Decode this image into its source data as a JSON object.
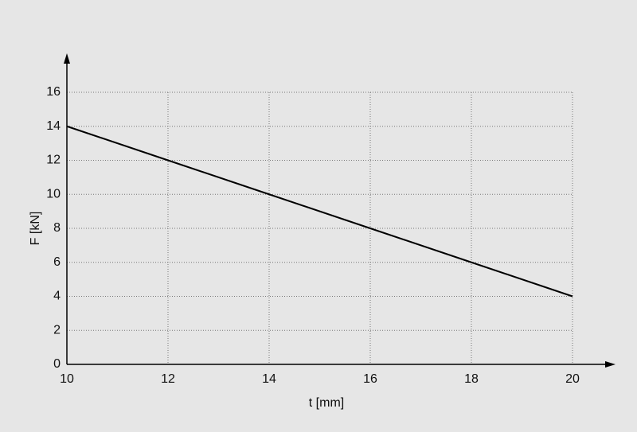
{
  "chart_data": {
    "type": "line",
    "x_label": "t [mm]",
    "y_label": "F [kN]",
    "x": [
      10,
      12,
      14,
      16,
      18,
      20
    ],
    "values": [
      14,
      12,
      10,
      8,
      6,
      4
    ],
    "color": "#000000",
    "xlim": [
      10,
      20
    ],
    "xticks": [
      10,
      12,
      14,
      16,
      18,
      20
    ],
    "ylim": [
      0,
      16
    ],
    "yticks": [
      0,
      2,
      4,
      6,
      8,
      10,
      12,
      14,
      16
    ],
    "grid": true
  }
}
